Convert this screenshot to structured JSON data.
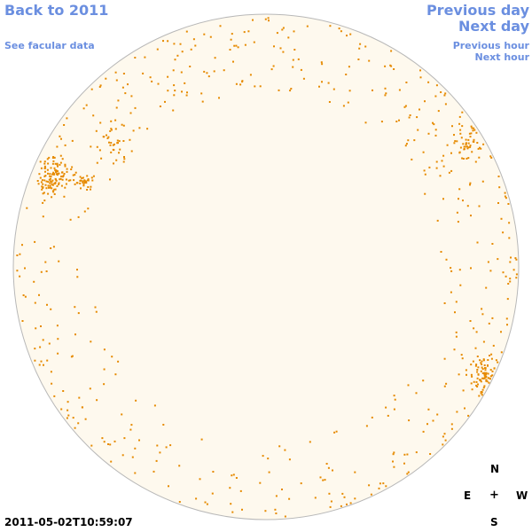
{
  "nav": {
    "back": "Back to 2011",
    "facular": "See facular data",
    "prev_day": "Previous day",
    "next_day": "Next day",
    "prev_hour": "Previous hour",
    "next_hour": "Next hour"
  },
  "timestamp": "2011-05-02T10:59:07",
  "compass": {
    "n": "N",
    "e": "E",
    "center": "+",
    "w": "W",
    "s": "S"
  },
  "colors": {
    "link": "#6b8fe0",
    "disk_fill": "#fef9ee",
    "disk_stroke": "#b8b8b8",
    "facula": "#e68a00"
  }
}
